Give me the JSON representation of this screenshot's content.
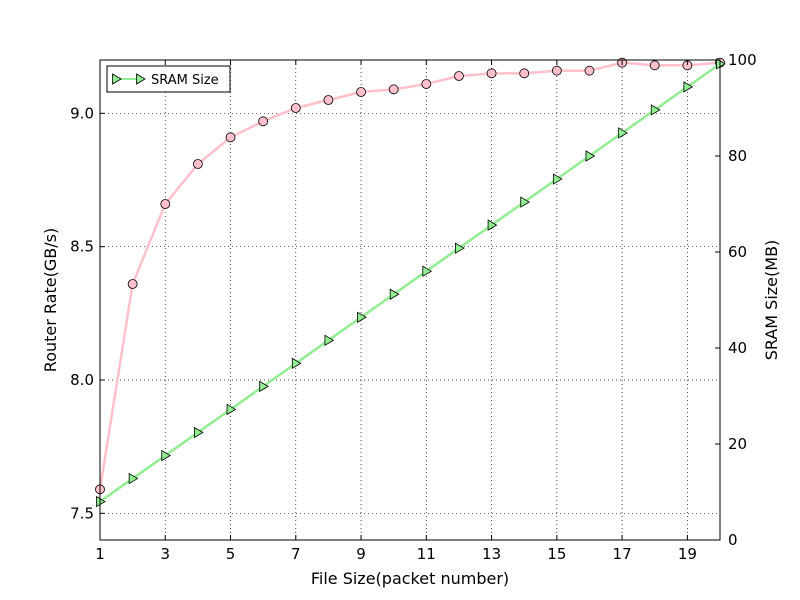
{
  "chart_data": {
    "type": "line",
    "xlabel": "File Size(packet number)",
    "ylabel_left": "Router Rate(GB/s)",
    "ylabel_right": "SRAM Size(MB)",
    "xlim": [
      1,
      20
    ],
    "ylim_left": [
      7.4,
      9.2
    ],
    "ylim_right": [
      0,
      100
    ],
    "x_ticks": [
      "1",
      "3",
      "5",
      "7",
      "9",
      "11",
      "13",
      "15",
      "17",
      "19"
    ],
    "y_left_ticks": [
      "7.5",
      "8.0",
      "8.5",
      "9.0"
    ],
    "y_right_ticks": [
      "0",
      "20",
      "40",
      "60",
      "80",
      "100"
    ],
    "grid": true,
    "legend_position": "top-left",
    "legend": [
      "SRAM Size"
    ],
    "x": [
      1,
      2,
      3,
      4,
      5,
      6,
      7,
      8,
      9,
      10,
      11,
      12,
      13,
      14,
      15,
      16,
      17,
      18,
      19,
      20
    ],
    "series": [
      {
        "axis": "left",
        "marker": "circle",
        "color": "#ffc0cb",
        "values": [
          7.59,
          8.36,
          8.66,
          8.81,
          8.91,
          8.97,
          9.02,
          9.05,
          9.08,
          9.09,
          9.11,
          9.14,
          9.15,
          9.15,
          9.16,
          9.16,
          9.19,
          9.18,
          9.18,
          9.19
        ]
      },
      {
        "name": "SRAM Size",
        "axis": "right",
        "marker": "triangle-right",
        "color": "#90ee90",
        "values": [
          8,
          12.8,
          17.6,
          22.4,
          27.2,
          32,
          36.8,
          41.6,
          46.4,
          51.2,
          56,
          60.8,
          65.6,
          70.4,
          75.2,
          80,
          84.8,
          89.6,
          94.4,
          99.2
        ]
      }
    ]
  }
}
